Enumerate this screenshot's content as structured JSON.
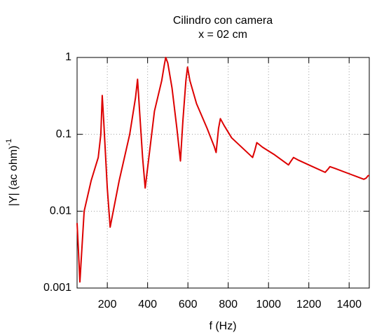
{
  "chart_data": {
    "type": "line",
    "title": "Cilindro con camera",
    "subtitle": "x = 02 cm",
    "xlabel": "f (Hz)",
    "ylabel": "|Y| (ac ohm)",
    "ylabel_superscript": "-1",
    "log_y": true,
    "grid": true,
    "xlim": [
      50,
      1500
    ],
    "ylim": [
      0.001,
      1
    ],
    "xticks": [
      200,
      400,
      600,
      800,
      1000,
      1200,
      1400
    ],
    "yticks": [
      0.001,
      0.01,
      0.1,
      1
    ],
    "series": [
      {
        "color": "#dd0000",
        "x": [
          50,
          57,
          64,
          85,
          120,
          155,
          168,
          175,
          182,
          200,
          214,
          259,
          311,
          340,
          350,
          360,
          375,
          388,
          434,
          470,
          483,
          490,
          500,
          521,
          545,
          563,
          575,
          590,
          598,
          610,
          643,
          695,
          730,
          740,
          752,
          761,
          780,
          817,
          921,
          932,
          942,
          970,
          1026,
          1099,
          1112,
          1124,
          1150,
          1200,
          1281,
          1294,
          1305,
          1330,
          1410,
          1473,
          1485,
          1494,
          1500
        ],
        "values": [
          0.007,
          0.003,
          0.0012,
          0.01,
          0.025,
          0.05,
          0.1,
          0.32,
          0.15,
          0.02,
          0.0062,
          0.025,
          0.1,
          0.3,
          0.52,
          0.2,
          0.05,
          0.02,
          0.2,
          0.5,
          0.8,
          1.0,
          0.85,
          0.4,
          0.12,
          0.045,
          0.15,
          0.5,
          0.75,
          0.5,
          0.25,
          0.12,
          0.07,
          0.058,
          0.12,
          0.16,
          0.13,
          0.09,
          0.05,
          0.062,
          0.078,
          0.068,
          0.055,
          0.04,
          0.045,
          0.05,
          0.046,
          0.04,
          0.032,
          0.035,
          0.038,
          0.036,
          0.03,
          0.026,
          0.027,
          0.029,
          0.029
        ]
      }
    ]
  }
}
